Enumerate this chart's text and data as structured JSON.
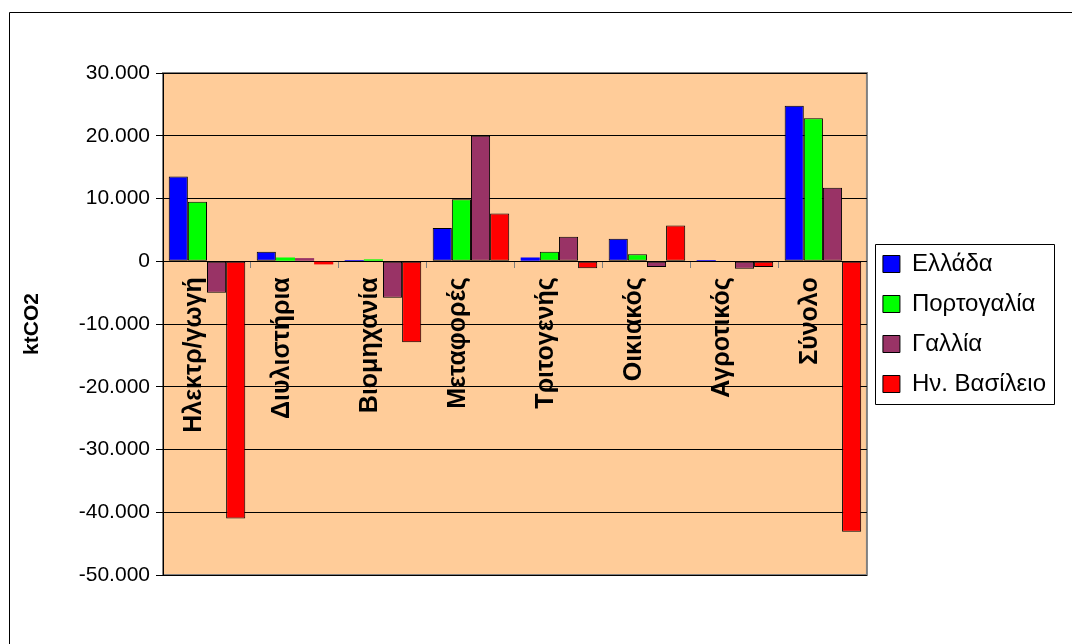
{
  "chart_data": {
    "type": "bar",
    "ylabel": "ktCO2",
    "categories": [
      "Ηλεκτρ/γωγή",
      "Διυλιστήρια",
      "Βιομηχανία",
      "Μεταφορές",
      "Τριτογενής",
      "Οικιακός",
      "Αγροτικός",
      "Σύνολο"
    ],
    "series": [
      {
        "name": "Ελλάδα",
        "color": "#0000ff",
        "values": [
          13500,
          1500,
          200,
          5300,
          600,
          3600,
          200,
          24800
        ]
      },
      {
        "name": "Πορτογαλία",
        "color": "#00ff00",
        "values": [
          9500,
          600,
          300,
          9900,
          1500,
          1100,
          0,
          22800
        ]
      },
      {
        "name": "Γαλλία",
        "color": "#993366",
        "values": [
          -5000,
          500,
          -5800,
          20000,
          3900,
          -900,
          -1200,
          11700
        ]
      },
      {
        "name": "Ην. Βασίλειο",
        "color": "#ff0000",
        "values": [
          -41000,
          -500,
          -12900,
          7600,
          -1100,
          5700,
          -900,
          -43100
        ]
      }
    ],
    "ylim": [
      -50000,
      30000
    ],
    "yticks": [
      {
        "value": 30000,
        "label": "30.000"
      },
      {
        "value": 20000,
        "label": "20.000"
      },
      {
        "value": 10000,
        "label": "10.000"
      },
      0,
      {
        "value": -10000,
        "label": "-10.000"
      },
      {
        "value": -20000,
        "label": "-20.000"
      },
      {
        "value": -30000,
        "label": "-30.000"
      },
      {
        "value": -40000,
        "label": "-40.000"
      },
      {
        "value": -50000,
        "label": "-50.000"
      }
    ],
    "grid": "y",
    "legend": "right"
  }
}
